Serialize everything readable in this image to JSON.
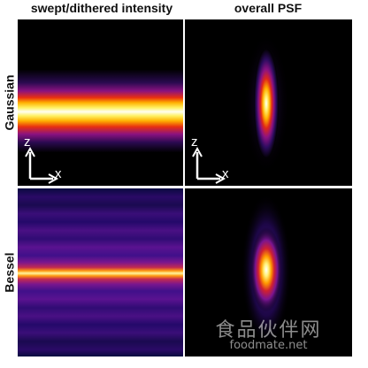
{
  "columns": [
    "swept/dithered intensity",
    "overall PSF"
  ],
  "rows": [
    "Gaussian",
    "Bessel"
  ],
  "axes": {
    "vertical": "z",
    "horizontal": "x"
  },
  "watermark": {
    "cn": "食品伙伴网",
    "url": "foodmate.net"
  },
  "colormap": "hot (black-purple-red-orange-yellow-white)"
}
